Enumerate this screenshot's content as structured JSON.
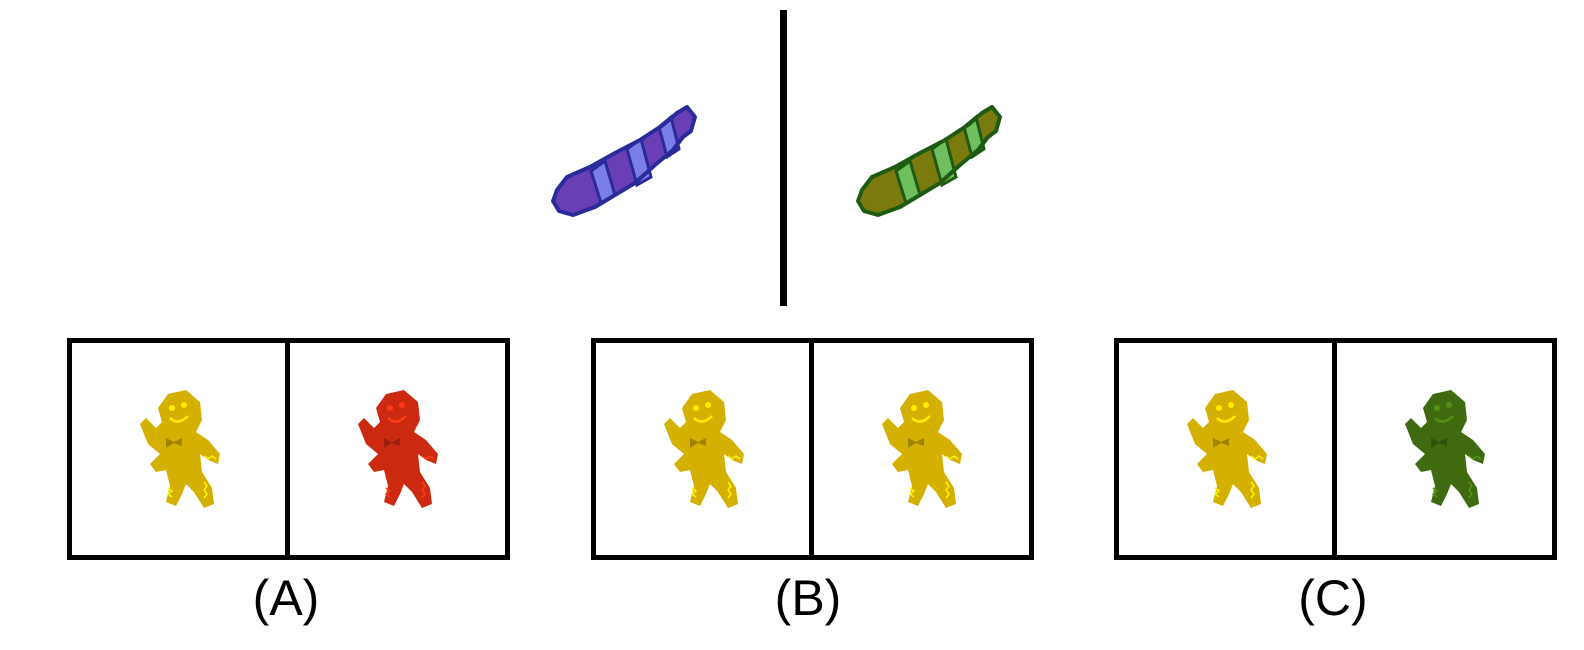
{
  "example": {
    "left_colors": {
      "body": "#6a3fb6",
      "stripe": "#7b7ee8",
      "outline": "#2a2a9a"
    },
    "right_colors": {
      "body": "#7a7a0e",
      "stripe": "#6fbf5f",
      "outline": "#1e5a12"
    }
  },
  "options": [
    {
      "label": "(A)",
      "left_color": "#d4b000",
      "right_color": "#cc2a10"
    },
    {
      "label": "(B)",
      "left_color": "#d4b000",
      "right_color": "#d4b000"
    },
    {
      "label": "(C)",
      "left_color": "#d4b000",
      "right_color": "#3f6a10"
    }
  ]
}
